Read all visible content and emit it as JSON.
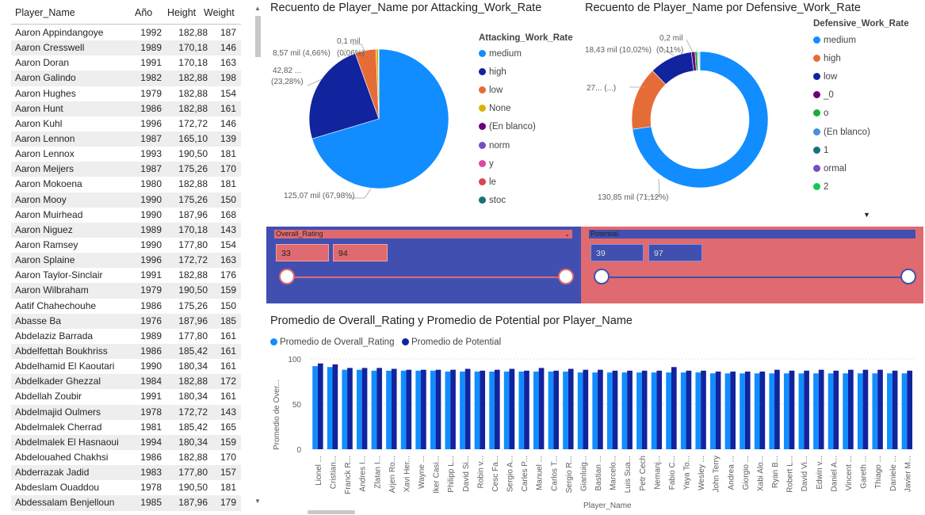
{
  "table": {
    "headers": {
      "name": "Player_Name",
      "year": "Año",
      "height": "Height",
      "weight": "Weight"
    },
    "rows": [
      {
        "name": "Aaron Appindangoye",
        "year": "1992",
        "height": "182,88",
        "weight": "187"
      },
      {
        "name": "Aaron Cresswell",
        "year": "1989",
        "height": "170,18",
        "weight": "146"
      },
      {
        "name": "Aaron Doran",
        "year": "1991",
        "height": "170,18",
        "weight": "163"
      },
      {
        "name": "Aaron Galindo",
        "year": "1982",
        "height": "182,88",
        "weight": "198"
      },
      {
        "name": "Aaron Hughes",
        "year": "1979",
        "height": "182,88",
        "weight": "154"
      },
      {
        "name": "Aaron Hunt",
        "year": "1986",
        "height": "182,88",
        "weight": "161"
      },
      {
        "name": "Aaron Kuhl",
        "year": "1996",
        "height": "172,72",
        "weight": "146"
      },
      {
        "name": "Aaron Lennon",
        "year": "1987",
        "height": "165,10",
        "weight": "139"
      },
      {
        "name": "Aaron Lennox",
        "year": "1993",
        "height": "190,50",
        "weight": "181"
      },
      {
        "name": "Aaron Meijers",
        "year": "1987",
        "height": "175,26",
        "weight": "170"
      },
      {
        "name": "Aaron Mokoena",
        "year": "1980",
        "height": "182,88",
        "weight": "181"
      },
      {
        "name": "Aaron Mooy",
        "year": "1990",
        "height": "175,26",
        "weight": "150"
      },
      {
        "name": "Aaron Muirhead",
        "year": "1990",
        "height": "187,96",
        "weight": "168"
      },
      {
        "name": "Aaron Niguez",
        "year": "1989",
        "height": "170,18",
        "weight": "143"
      },
      {
        "name": "Aaron Ramsey",
        "year": "1990",
        "height": "177,80",
        "weight": "154"
      },
      {
        "name": "Aaron Splaine",
        "year": "1996",
        "height": "172,72",
        "weight": "163"
      },
      {
        "name": "Aaron Taylor-Sinclair",
        "year": "1991",
        "height": "182,88",
        "weight": "176"
      },
      {
        "name": "Aaron Wilbraham",
        "year": "1979",
        "height": "190,50",
        "weight": "159"
      },
      {
        "name": "Aatif Chahechouhe",
        "year": "1986",
        "height": "175,26",
        "weight": "150"
      },
      {
        "name": "Abasse Ba",
        "year": "1976",
        "height": "187,96",
        "weight": "185"
      },
      {
        "name": "Abdelaziz Barrada",
        "year": "1989",
        "height": "177,80",
        "weight": "161"
      },
      {
        "name": "Abdelfettah Boukhriss",
        "year": "1986",
        "height": "185,42",
        "weight": "161"
      },
      {
        "name": "Abdelhamid El Kaoutari",
        "year": "1990",
        "height": "180,34",
        "weight": "161"
      },
      {
        "name": "Abdelkader Ghezzal",
        "year": "1984",
        "height": "182,88",
        "weight": "172"
      },
      {
        "name": "Abdellah Zoubir",
        "year": "1991",
        "height": "180,34",
        "weight": "161"
      },
      {
        "name": "Abdelmajid Oulmers",
        "year": "1978",
        "height": "172,72",
        "weight": "143"
      },
      {
        "name": "Abdelmalek Cherrad",
        "year": "1981",
        "height": "185,42",
        "weight": "165"
      },
      {
        "name": "Abdelmalek El Hasnaoui",
        "year": "1994",
        "height": "180,34",
        "weight": "159"
      },
      {
        "name": "Abdelouahed Chakhsi",
        "year": "1986",
        "height": "182,88",
        "weight": "170"
      },
      {
        "name": "Abderrazak Jadid",
        "year": "1983",
        "height": "177,80",
        "weight": "157"
      },
      {
        "name": "Abdeslam Ouaddou",
        "year": "1978",
        "height": "190,50",
        "weight": "181"
      },
      {
        "name": "Abdessalam Benjelloun",
        "year": "1985",
        "height": "187,96",
        "weight": "179"
      }
    ]
  },
  "pie_attacking": {
    "title": "Recuento de Player_Name por Attacking_Work_Rate",
    "legend_title": "Attacking_Work_Rate",
    "legend": [
      {
        "label": "medium",
        "color": "#118dff"
      },
      {
        "label": "high",
        "color": "#12239e"
      },
      {
        "label": "low",
        "color": "#e66c37"
      },
      {
        "label": "None",
        "color": "#d9b300"
      },
      {
        "label": "(En blanco)",
        "color": "#6b007b"
      },
      {
        "label": "norm",
        "color": "#744ec2"
      },
      {
        "label": "y",
        "color": "#e044a7"
      },
      {
        "label": "le",
        "color": "#d64550"
      },
      {
        "label": "stoc",
        "color": "#197278"
      }
    ],
    "labels": [
      "125,07 mil (67,98%)",
      "42,82 ...",
      "(23,28%)",
      "8,57 mil (4,66%)",
      "0,1 mil",
      "(0,06%)"
    ]
  },
  "pie_defensive": {
    "title": "Recuento de Player_Name por Defensive_Work_Rate",
    "legend_title": "Defensive_Work_Rate",
    "legend": [
      {
        "label": "medium",
        "color": "#118dff"
      },
      {
        "label": "high",
        "color": "#e66c37"
      },
      {
        "label": "low",
        "color": "#12239e"
      },
      {
        "label": "_0",
        "color": "#6b007b"
      },
      {
        "label": "o",
        "color": "#1aab40"
      },
      {
        "label": "(En blanco)",
        "color": "#4a8ddc"
      },
      {
        "label": "1",
        "color": "#197278"
      },
      {
        "label": "ormal",
        "color": "#744ec2"
      },
      {
        "label": "2",
        "color": "#15c64f"
      }
    ],
    "labels": [
      "130,85 mil (71,12%)",
      "27... (...)",
      "18,43 mil (10,02%)",
      "0,2 mil",
      "(0,11%)"
    ]
  },
  "slicer_overall": {
    "label": "Overall_Rating",
    "min": "33",
    "max": "94"
  },
  "slicer_potential": {
    "label": "Potential",
    "min": "39",
    "max": "97"
  },
  "bar_chart": {
    "title": "Promedio de Overall_Rating y Promedio de Potential por Player_Name",
    "legend_overall": "Promedio de Overall_Rating",
    "legend_potential": "Promedio de Potential",
    "ylabel": "Promedio de Over...",
    "xlabel": "Player_Name"
  },
  "chart_data": [
    {
      "type": "pie",
      "title": "Recuento de Player_Name por Attacking_Work_Rate",
      "categories": [
        "medium",
        "high",
        "low",
        "None",
        "(En blanco)",
        "norm",
        "y",
        "le",
        "stoc"
      ],
      "values": [
        125070,
        42820,
        8570,
        1000,
        100,
        50,
        30,
        30,
        20
      ],
      "percent_labels": {
        "medium": "67,98%",
        "high": "23,28%",
        "low": "4,66%",
        "(En blanco)": "0,06%"
      }
    },
    {
      "type": "pie",
      "title": "Recuento de Player_Name por Defensive_Work_Rate",
      "donut": true,
      "categories": [
        "medium",
        "high",
        "low",
        "_0",
        "o",
        "(En blanco)",
        "1",
        "ormal",
        "2"
      ],
      "values": [
        130850,
        27000,
        18430,
        1500,
        1000,
        200,
        300,
        300,
        300
      ],
      "percent_labels": {
        "medium": "71,12%",
        "low": "10,02%",
        "(En blanco)": "0,11%"
      }
    },
    {
      "type": "bar",
      "title": "Promedio de Overall_Rating y Promedio de Potential por Player_Name",
      "ylabel": "Promedio de Over...",
      "xlabel": "Player_Name",
      "ylim": [
        0,
        100
      ],
      "yticks": [
        0,
        50,
        100
      ],
      "categories": [
        "Lionel ...",
        "Cristian...",
        "Franck R...",
        "Andres I...",
        "Zlatan I...",
        "Arjen Ro...",
        "Xavi Her...",
        "Wayne ...",
        "Iker Casi...",
        "Philipp L...",
        "David Si...",
        "Robin v...",
        "Cesc Fa...",
        "Sergio A...",
        "Carles P...",
        "Manuel ...",
        "Carlos T...",
        "Sergio R...",
        "Gianluig...",
        "Bastian ...",
        "Marcelo...",
        "Luis Sua...",
        "Petr Cech",
        "Nemanj...",
        "Fabio C...",
        "Yaya To...",
        "Wesley ...",
        "John Terry",
        "Andrea ...",
        "Giorgio ...",
        "Xabi Alo...",
        "Ryan B...",
        "Robert L...",
        "David Vi...",
        "Edwin v...",
        "Daniel A...",
        "Vincent ...",
        "Gareth ...",
        "Thiago ...",
        "Daniele ...",
        "Javier M..."
      ],
      "series": [
        {
          "name": "Promedio de Overall_Rating",
          "color": "#118dff",
          "values": [
            92,
            91,
            88,
            88,
            87,
            87,
            87,
            87,
            87,
            86,
            86,
            86,
            86,
            86,
            86,
            86,
            86,
            86,
            85,
            85,
            85,
            85,
            85,
            85,
            85,
            85,
            85,
            84,
            84,
            84,
            84,
            84,
            84,
            84,
            84,
            84,
            84,
            84,
            84,
            84,
            84
          ]
        },
        {
          "name": "Promedio de Potential",
          "color": "#12239e",
          "values": [
            95,
            94,
            90,
            90,
            90,
            89,
            88,
            88,
            88,
            88,
            89,
            87,
            88,
            89,
            87,
            90,
            87,
            89,
            88,
            88,
            87,
            87,
            87,
            87,
            91,
            87,
            87,
            86,
            86,
            86,
            86,
            88,
            87,
            87,
            88,
            87,
            88,
            88,
            88,
            87,
            87
          ]
        }
      ]
    }
  ]
}
